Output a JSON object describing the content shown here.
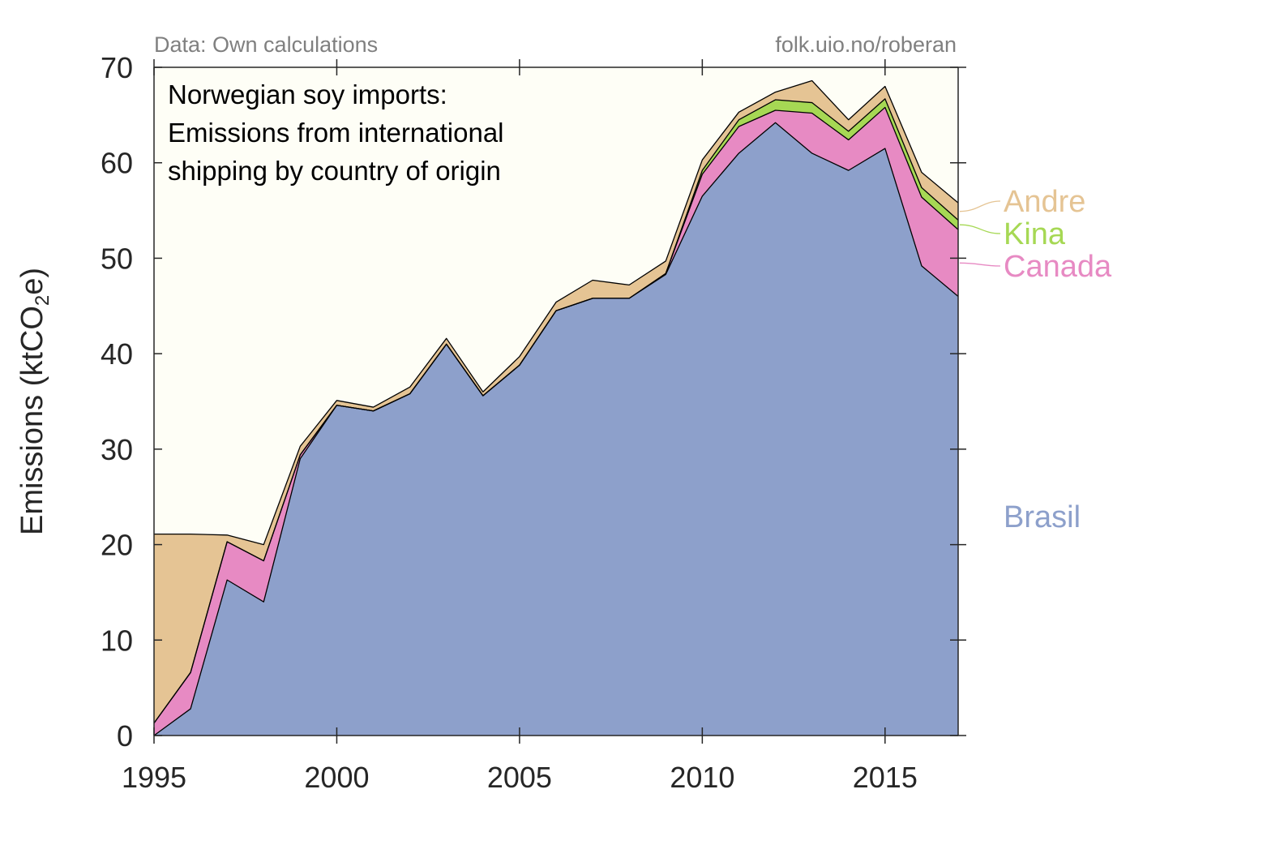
{
  "source_note": "Data: Own calculations",
  "url_note": "folk.uio.no/roberan",
  "chart_data": {
    "type": "area",
    "title_lines": [
      "Norwegian soy imports:",
      "Emissions from international",
      "shipping by country of origin"
    ],
    "ylabel_main": "Emissions (ktCO",
    "ylabel_sub": "2",
    "ylabel_end": "e)",
    "xlabel": "",
    "xlim": [
      1995,
      2017
    ],
    "ylim": [
      0,
      70
    ],
    "xticks": [
      1995,
      2000,
      2005,
      2010,
      2015
    ],
    "yticks": [
      0,
      10,
      20,
      30,
      40,
      50,
      60,
      70
    ],
    "grid": false,
    "legend_placement": "right",
    "x": [
      1995,
      1996,
      1997,
      1998,
      1999,
      2000,
      2001,
      2002,
      2003,
      2004,
      2005,
      2006,
      2007,
      2008,
      2009,
      2010,
      2011,
      2012,
      2013,
      2014,
      2015,
      2016,
      2017
    ],
    "series": [
      {
        "name": "Brasil",
        "color": "#8da0cb",
        "values": [
          0,
          2.8,
          16.3,
          14.0,
          29.0,
          34.6,
          34.0,
          35.8,
          41.0,
          35.6,
          38.8,
          44.5,
          45.8,
          45.8,
          48.3,
          56.5,
          61.0,
          64.2,
          61.0,
          59.2,
          61.5,
          49.2,
          46.0
        ]
      },
      {
        "name": "Canada",
        "color": "#e78ac3",
        "values": [
          1.3,
          3.8,
          4.0,
          4.3,
          0.4,
          0,
          0,
          0,
          0,
          0,
          0,
          0,
          0,
          0,
          0.1,
          2.3,
          2.8,
          1.3,
          4.2,
          3.2,
          4.3,
          7.2,
          7.0
        ]
      },
      {
        "name": "Kina",
        "color": "#a6d854",
        "values": [
          0,
          0,
          0,
          0,
          0,
          0,
          0,
          0,
          0,
          0,
          0,
          0,
          0,
          0,
          0,
          0.4,
          0.7,
          1.1,
          1.1,
          0.9,
          0.9,
          1.0,
          1.0
        ]
      },
      {
        "name": "Andre",
        "color": "#e5c494",
        "values": [
          19.8,
          14.5,
          0.7,
          1.7,
          0.9,
          0.5,
          0.4,
          0.7,
          0.6,
          0.4,
          0.9,
          0.9,
          1.9,
          1.4,
          1.3,
          1.1,
          0.8,
          0.8,
          2.3,
          1.2,
          1.3,
          1.6,
          1.8
        ]
      }
    ],
    "colors": {
      "plot_background": "#fefef6",
      "axis": "#262626",
      "outline": "#000000"
    }
  }
}
